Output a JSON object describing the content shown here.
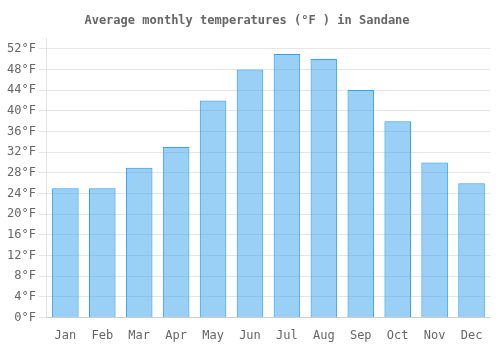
{
  "chart_data": {
    "type": "bar",
    "title": "Average monthly temperatures (°F ) in Sandane",
    "categories": [
      "Jan",
      "Feb",
      "Mar",
      "Apr",
      "May",
      "Jun",
      "Jul",
      "Aug",
      "Sep",
      "Oct",
      "Nov",
      "Dec"
    ],
    "values": [
      25,
      25,
      29,
      33,
      42,
      48,
      51,
      50,
      44,
      38,
      30,
      26
    ],
    "ylim": [
      0,
      54
    ],
    "yticks": [
      {
        "value": 0,
        "label": "0°F"
      },
      {
        "value": 4,
        "label": "4°F"
      },
      {
        "value": 8,
        "label": "8°F"
      },
      {
        "value": 12,
        "label": "12°F"
      },
      {
        "value": 16,
        "label": "16°F"
      },
      {
        "value": 20,
        "label": "20°F"
      },
      {
        "value": 24,
        "label": "24°F"
      },
      {
        "value": 28,
        "label": "28°F"
      },
      {
        "value": 32,
        "label": "32°F"
      },
      {
        "value": 36,
        "label": "36°F"
      },
      {
        "value": 40,
        "label": "40°F"
      },
      {
        "value": 44,
        "label": "44°F"
      },
      {
        "value": 48,
        "label": "48°F"
      },
      {
        "value": 52,
        "label": "52°F"
      }
    ],
    "grid": true
  }
}
